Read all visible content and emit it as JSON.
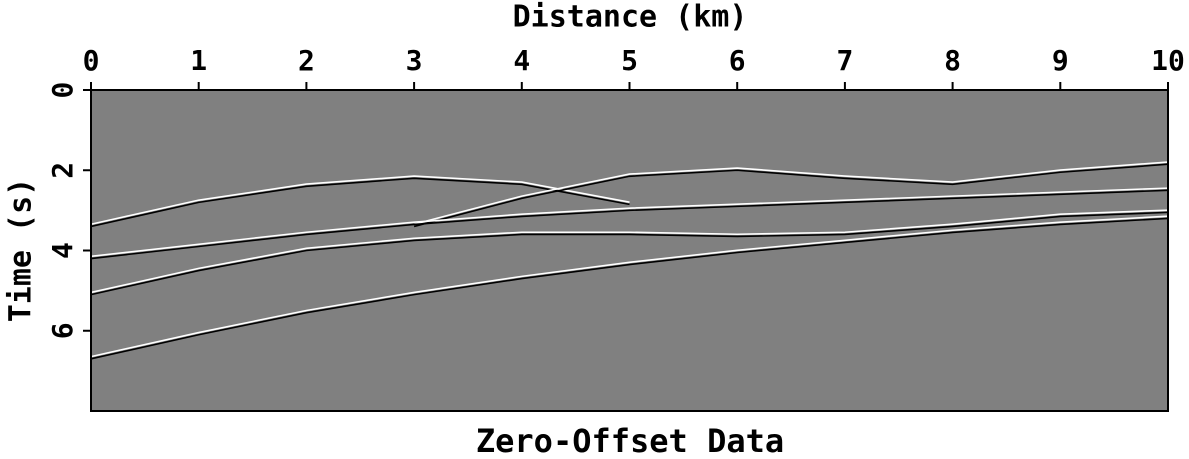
{
  "chart_data": {
    "type": "seismic",
    "title": "Zero-Offset Data",
    "xlabel": "Distance (km)",
    "ylabel": "Time (s)",
    "xlim": [
      0,
      10
    ],
    "xticks": [
      0,
      1,
      2,
      3,
      4,
      5,
      6,
      7,
      8,
      9,
      10
    ],
    "ylim": [
      8,
      0
    ],
    "yticks": [
      0,
      2,
      4,
      6
    ],
    "background": "#808080",
    "x": [
      0,
      1,
      2,
      3,
      4,
      5,
      6,
      7,
      8,
      9,
      10
    ],
    "series": [
      {
        "color": "#000000",
        "values": [
          3.4,
          2.8,
          2.4,
          2.2,
          2.35,
          2.85,
          null,
          null,
          null,
          null,
          null
        ]
      },
      {
        "color": "#000000",
        "values": [
          null,
          null,
          null,
          3.4,
          2.7,
          2.15,
          2.0,
          2.2,
          2.35,
          2.05,
          1.85
        ]
      },
      {
        "color": "#000000",
        "values": [
          4.2,
          3.9,
          3.6,
          3.35,
          3.15,
          3.0,
          2.9,
          2.8,
          2.7,
          2.6,
          2.5
        ]
      },
      {
        "color": "#000000",
        "values": [
          5.1,
          4.5,
          4.0,
          3.75,
          3.6,
          3.6,
          3.65,
          3.6,
          3.4,
          3.15,
          3.05
        ]
      },
      {
        "color": "#000000",
        "values": [
          6.7,
          6.1,
          5.55,
          5.1,
          4.7,
          4.35,
          4.05,
          3.8,
          3.55,
          3.35,
          3.2
        ]
      }
    ]
  }
}
